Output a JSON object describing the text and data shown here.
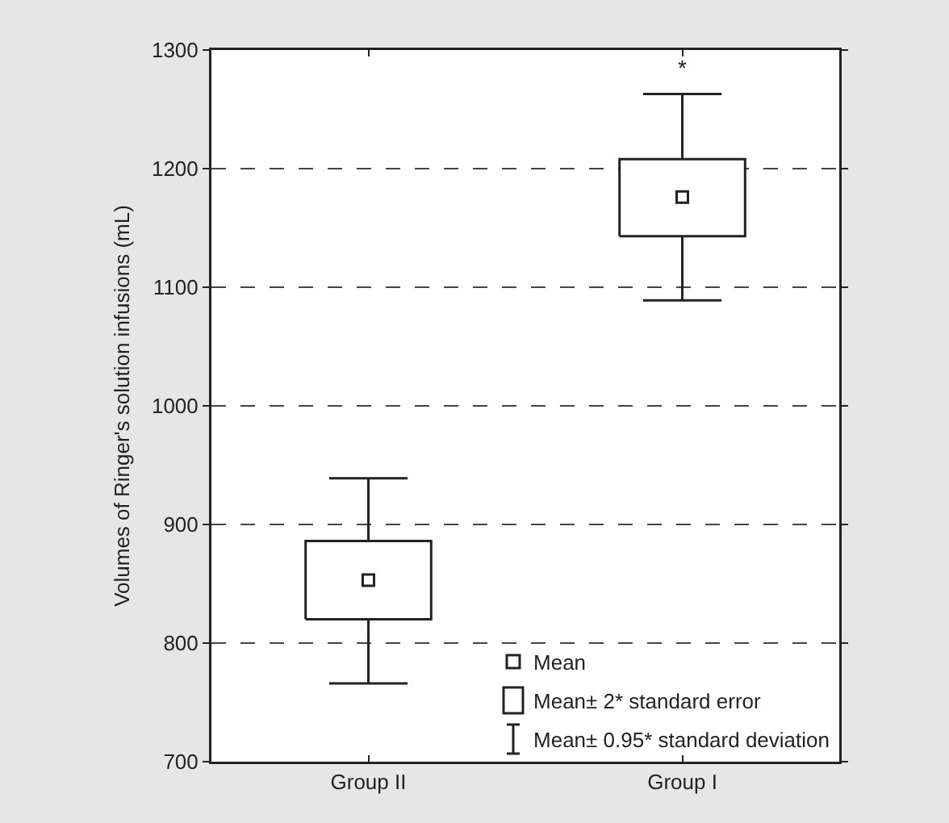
{
  "chart_data": {
    "type": "box",
    "ylabel": "Volumes of Ringer's solution infusions (mL)",
    "categories": [
      "Group II",
      "Group I"
    ],
    "boxes": [
      {
        "low": 766,
        "q1": 820,
        "q3": 886,
        "high": 939,
        "mean": 853
      },
      {
        "low": 1089,
        "q1": 1143,
        "q3": 1208,
        "high": 1263,
        "mean": 1176
      }
    ],
    "ylim": [
      700,
      1300
    ],
    "yticks": [
      700,
      800,
      900,
      1000,
      1100,
      1200,
      1300
    ],
    "grid": "y",
    "marker": "square",
    "annotations": [
      {
        "text": "*",
        "x": "Group I",
        "y": 1263
      },
      "Mean",
      "Mean± 2* standard error",
      "Mean± 0.95* standard deviation"
    ]
  }
}
